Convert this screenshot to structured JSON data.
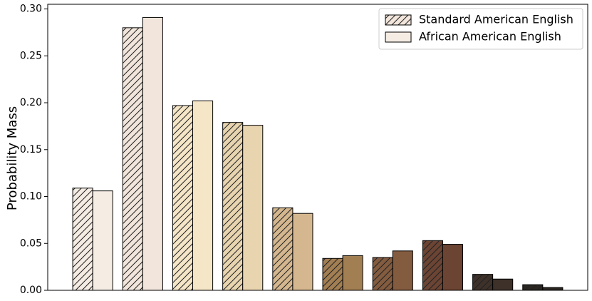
{
  "chart_data": {
    "type": "grouped_bar",
    "ylabel": "Probability Mass",
    "categories": [
      null,
      null,
      null,
      null,
      null,
      null,
      null,
      null,
      null,
      null
    ],
    "category_colors": [
      "#f5ece4",
      "#f2e6dc",
      "#f5e6c8",
      "#e8d5b0",
      "#d4b78f",
      "#a27e53",
      "#835c40",
      "#6b4434",
      "#3d3129",
      "#2b2622"
    ],
    "series": [
      {
        "name": "Standard American English",
        "color": "#f2e6dc",
        "hatch": "//",
        "values": [
          0.109,
          0.28,
          0.197,
          0.179,
          0.088,
          0.034,
          0.035,
          0.053,
          0.017,
          0.006
        ]
      },
      {
        "name": "African American English",
        "color": "#f5ece4",
        "values": [
          0.106,
          0.291,
          0.202,
          0.176,
          0.082,
          0.037,
          0.042,
          0.049,
          0.012,
          0.003
        ]
      }
    ],
    "ylim": [
      0,
      0.305
    ],
    "yticks": [
      {
        "value": 0,
        "label": "0.00"
      },
      {
        "value": 0.05,
        "label": "0.05"
      },
      {
        "value": 0.1,
        "label": "0.10"
      },
      {
        "value": 0.15,
        "label": "0.15"
      },
      {
        "value": 0.2,
        "label": "0.20"
      },
      {
        "value": 0.25,
        "label": "0.25"
      },
      {
        "value": 0.3,
        "label": "0.30"
      }
    ],
    "legend": "upper right"
  }
}
